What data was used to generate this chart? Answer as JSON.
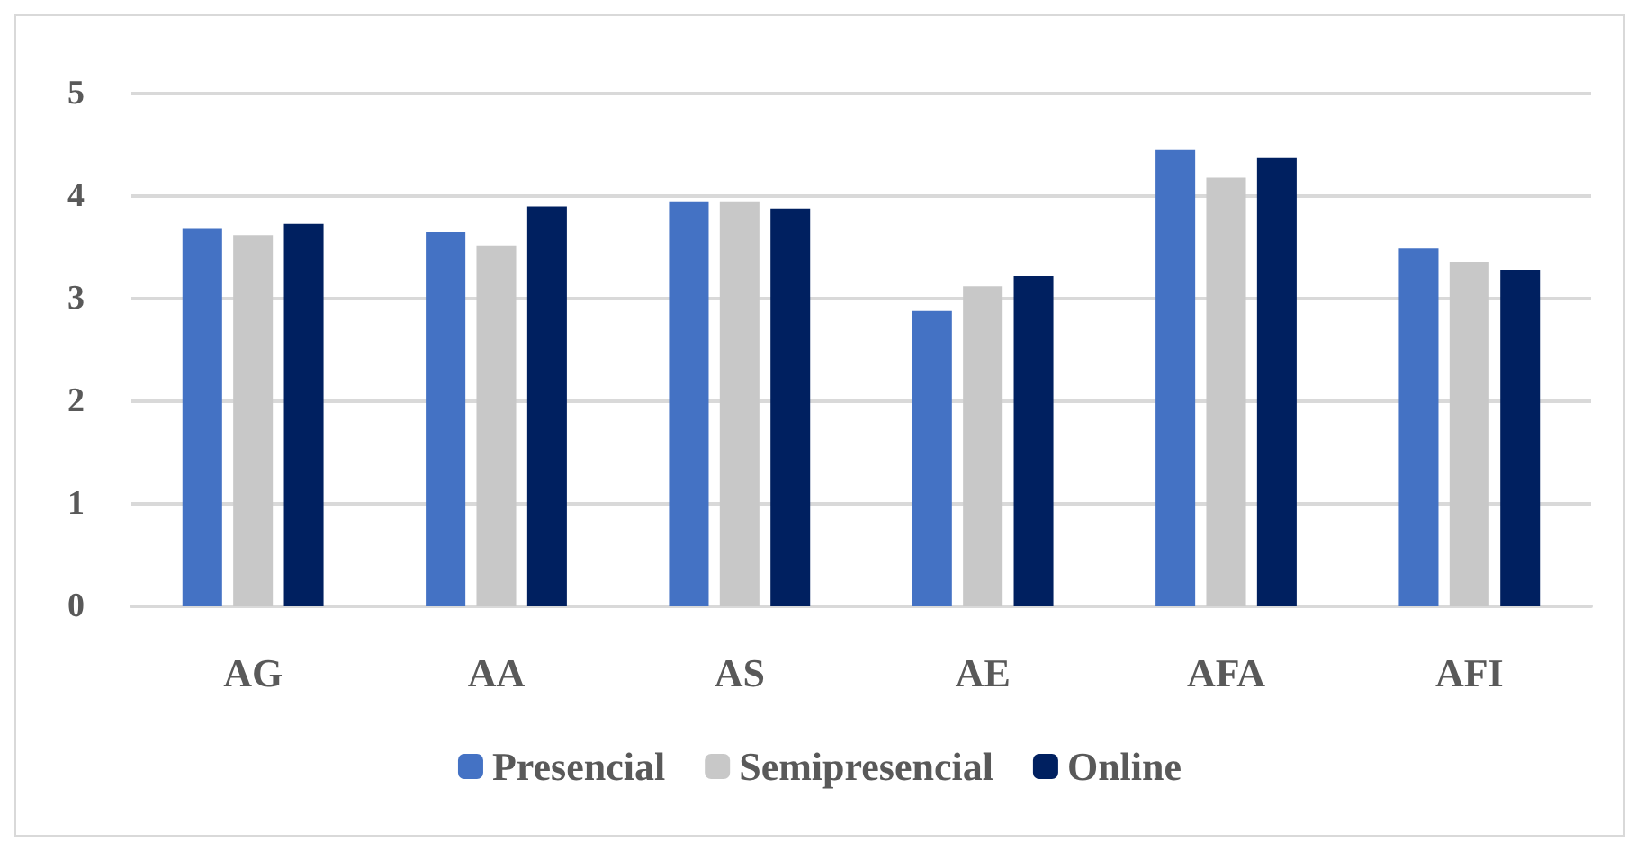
{
  "chart_data": {
    "type": "bar",
    "categories": [
      "AG",
      "AA",
      "AS",
      "AE",
      "AFA",
      "AFI"
    ],
    "series": [
      {
        "name": "Presencial",
        "color": "#4472c4",
        "values": [
          3.68,
          3.65,
          3.95,
          2.88,
          4.45,
          3.49
        ]
      },
      {
        "name": "Semipresencial",
        "color": "#c8c8c8",
        "values": [
          3.62,
          3.52,
          3.95,
          3.12,
          4.18,
          3.36
        ]
      },
      {
        "name": "Online",
        "color": "#002060",
        "values": [
          3.73,
          3.9,
          3.88,
          3.22,
          4.37,
          3.28
        ]
      }
    ],
    "ylim": [
      0,
      5
    ],
    "yticks": [
      0,
      1,
      2,
      3,
      4,
      5
    ],
    "grid": "y",
    "legend": "bottom"
  }
}
